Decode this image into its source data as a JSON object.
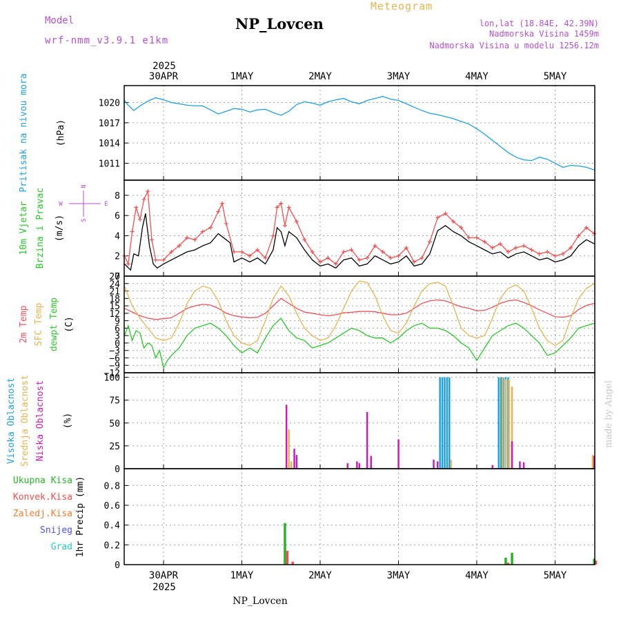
{
  "header": {
    "model_label": "Model",
    "model_name": "wrf-nmm_v3.9.1 e1km",
    "station": "NP_Lovcen",
    "meteogram": "Meteogram",
    "lonlat": "lon,lat (18.84E, 42.39N)",
    "altitude": "Nadmorska Visina 1459m",
    "model_altitude": "Nadmorska Visina u modelu 1256.12m",
    "year_top": "2025",
    "year_bottom": "2025",
    "footer_station": "NP_Lovcen",
    "watermark": "made by Angel"
  },
  "colors": {
    "pressure": "#1e9fe6",
    "temp2m": "#f0505a",
    "sfc": "#e6b450",
    "dewpt": "#28c828",
    "wind_label": "#28c828",
    "wind_speed": "#000000",
    "gust": "#f05050",
    "high_cloud": "#1e9fe6",
    "mid_cloud": "#e6b450",
    "low_cloud": "#c81eb4",
    "total_precip": "#28b428",
    "conv_precip": "#f05050",
    "frozen": "#f08030",
    "snow": "#5050f0",
    "hail": "#28c8c8",
    "purple_text": "#b450d2",
    "orange_text": "#e6b450"
  },
  "chart_data": [
    {
      "type": "line",
      "x_categories": [
        "30APR",
        "1MAY",
        "2MAY",
        "3MAY",
        "4MAY",
        "5MAY"
      ],
      "ylabel_lines": [
        "Pritisak na nivou mora",
        "(hPa)"
      ],
      "ylim": [
        1008.5,
        1022.5
      ],
      "yticks": [
        1011,
        1014,
        1017,
        1020
      ],
      "series": [
        {
          "x": [
            -0.5,
            -0.45,
            -0.38,
            -0.3,
            -0.2,
            -0.1,
            0,
            0.1,
            0.2,
            0.3,
            0.4,
            0.5,
            0.6,
            0.7,
            0.8,
            0.9,
            1,
            1.1,
            1.2,
            1.3,
            1.4,
            1.5,
            1.6,
            1.7,
            1.8,
            1.9,
            2,
            2.1,
            2.2,
            2.3,
            2.4,
            2.5,
            2.6,
            2.7,
            2.8,
            2.9,
            3,
            3.1,
            3.2,
            3.3,
            3.4,
            3.5,
            3.6,
            3.7,
            3.8,
            3.9,
            4,
            4.1,
            4.2,
            4.3,
            4.4,
            4.5,
            4.6,
            4.7,
            4.8,
            4.9,
            5,
            5.1,
            5.2,
            5.3,
            5.4,
            5.5
          ],
          "values": [
            1020.3,
            1019.6,
            1018.8,
            1019.5,
            1020.2,
            1020.7,
            1020.4,
            1020.0,
            1019.8,
            1019.6,
            1019.5,
            1019.5,
            1018.9,
            1018.3,
            1018.7,
            1019.1,
            1019.0,
            1018.6,
            1018.9,
            1019.0,
            1018.5,
            1018.1,
            1018.7,
            1019.7,
            1020.1,
            1019.9,
            1019.6,
            1020.1,
            1020.4,
            1020.6,
            1020.1,
            1019.8,
            1020.3,
            1020.6,
            1020.9,
            1020.5,
            1020.3,
            1019.8,
            1019.3,
            1018.8,
            1018.4,
            1018.2,
            1017.9,
            1017.6,
            1017.2,
            1016.8,
            1016.1,
            1015.3,
            1014.4,
            1013.5,
            1012.6,
            1011.9,
            1011.5,
            1011.4,
            1011.9,
            1011.6,
            1011.0,
            1010.4,
            1010.7,
            1010.6,
            1010.4,
            1010.0
          ]
        }
      ]
    },
    {
      "type": "line",
      "x_categories": [
        "30APR",
        "1MAY",
        "2MAY",
        "3MAY",
        "4MAY",
        "5MAY"
      ],
      "ylabel_lines": [
        "10m Vjetar",
        "Brzina i Pravac",
        "(m/s)"
      ],
      "compass": {
        "n": "N",
        "s": "S",
        "e": "E",
        "w": "W"
      },
      "ylim": [
        0,
        9.5
      ],
      "yticks": [
        0,
        2,
        4,
        6,
        8
      ],
      "series": [
        {
          "name": "speed",
          "x": [
            -0.5,
            -0.42,
            -0.38,
            -0.32,
            -0.27,
            -0.23,
            -0.18,
            -0.13,
            -0.08,
            0,
            0.1,
            0.2,
            0.3,
            0.4,
            0.5,
            0.6,
            0.7,
            0.8,
            0.85,
            0.9,
            1,
            1.1,
            1.2,
            1.3,
            1.4,
            1.45,
            1.5,
            1.55,
            1.6,
            1.7,
            1.8,
            1.9,
            2,
            2.1,
            2.2,
            2.3,
            2.4,
            2.5,
            2.6,
            2.7,
            2.8,
            2.9,
            3,
            3.1,
            3.2,
            3.3,
            3.4,
            3.5,
            3.6,
            3.7,
            3.8,
            3.9,
            4,
            4.1,
            4.2,
            4.3,
            4.4,
            4.5,
            4.6,
            4.7,
            4.8,
            4.9,
            5,
            5.1,
            5.2,
            5.3,
            5.4,
            5.5
          ],
          "values": [
            1.2,
            0.6,
            2.2,
            2.0,
            4.8,
            6.2,
            3.0,
            1.2,
            0.8,
            1.2,
            1.6,
            2.0,
            2.4,
            2.6,
            3.0,
            3.3,
            4.2,
            3.6,
            3.3,
            1.4,
            1.8,
            1.4,
            1.8,
            1.2,
            2.6,
            4.8,
            4.4,
            3.0,
            4.4,
            3.8,
            2.6,
            1.6,
            1.0,
            1.2,
            0.8,
            1.6,
            1.8,
            1.0,
            1.2,
            2.0,
            1.6,
            1.2,
            1.4,
            2.0,
            1.0,
            1.2,
            2.2,
            4.5,
            5.0,
            4.4,
            4.0,
            3.4,
            3.0,
            2.6,
            2.2,
            2.4,
            1.8,
            2.2,
            2.4,
            2.0,
            1.6,
            1.8,
            1.4,
            1.6,
            2.0,
            3.0,
            3.6,
            3.2
          ]
        },
        {
          "name": "gust",
          "x": [
            -0.5,
            -0.45,
            -0.4,
            -0.35,
            -0.3,
            -0.25,
            -0.2,
            -0.15,
            -0.1,
            0,
            0.1,
            0.2,
            0.3,
            0.4,
            0.5,
            0.6,
            0.7,
            0.75,
            0.8,
            0.9,
            1,
            1.1,
            1.2,
            1.3,
            1.4,
            1.45,
            1.5,
            1.55,
            1.6,
            1.7,
            1.8,
            1.9,
            2,
            2.1,
            2.2,
            2.3,
            2.4,
            2.5,
            2.6,
            2.7,
            2.8,
            2.9,
            3,
            3.1,
            3.2,
            3.3,
            3.4,
            3.5,
            3.6,
            3.7,
            3.8,
            3.9,
            4,
            4.1,
            4.2,
            4.3,
            4.4,
            4.5,
            4.6,
            4.7,
            4.8,
            4.9,
            5,
            5.1,
            5.2,
            5.3,
            5.4,
            5.5
          ],
          "values": [
            2.0,
            1.2,
            4.4,
            6.8,
            5.6,
            7.6,
            8.4,
            3.6,
            1.6,
            1.6,
            2.4,
            3.0,
            3.8,
            3.6,
            4.4,
            4.8,
            6.4,
            7.2,
            5.2,
            2.4,
            2.4,
            2.0,
            2.6,
            1.8,
            4.0,
            6.8,
            7.2,
            5.0,
            6.8,
            5.4,
            3.6,
            2.4,
            1.4,
            1.8,
            1.2,
            2.4,
            2.6,
            1.6,
            1.8,
            3.0,
            2.4,
            1.8,
            2.0,
            2.8,
            1.4,
            1.8,
            3.4,
            5.8,
            6.2,
            5.4,
            4.8,
            3.8,
            3.8,
            3.4,
            2.8,
            3.2,
            2.4,
            2.8,
            3.0,
            2.6,
            2.2,
            2.4,
            2.0,
            2.2,
            2.8,
            4.0,
            4.8,
            4.2
          ]
        }
      ]
    },
    {
      "type": "line",
      "x_categories": [
        "30APR",
        "1MAY",
        "2MAY",
        "3MAY",
        "4MAY",
        "5MAY"
      ],
      "ylabel_lines": [
        "2m Temp",
        "SFC Temp",
        "dewpt Temp",
        "(C)"
      ],
      "ylim": [
        -12,
        27
      ],
      "yticks": [
        -12,
        -9,
        -6,
        -3,
        0,
        3,
        6,
        9,
        12,
        15,
        18,
        21,
        24,
        27
      ],
      "series": [
        {
          "name": "2m Temp",
          "x": [
            -0.5,
            -0.4,
            -0.3,
            -0.2,
            -0.1,
            0,
            0.1,
            0.2,
            0.3,
            0.4,
            0.5,
            0.6,
            0.7,
            0.8,
            0.9,
            1,
            1.1,
            1.2,
            1.3,
            1.4,
            1.5,
            1.6,
            1.7,
            1.8,
            1.9,
            2,
            2.1,
            2.2,
            2.3,
            2.4,
            2.5,
            2.6,
            2.7,
            2.8,
            2.9,
            3,
            3.1,
            3.2,
            3.3,
            3.4,
            3.5,
            3.6,
            3.7,
            3.8,
            3.9,
            4,
            4.1,
            4.2,
            4.3,
            4.4,
            4.5,
            4.6,
            4.7,
            4.8,
            4.9,
            5,
            5.1,
            5.2,
            5.3,
            5.4,
            5.5
          ],
          "values": [
            14,
            12.5,
            11,
            10,
            9.5,
            9.8,
            10.2,
            12,
            14,
            15,
            15.6,
            15.3,
            14,
            12,
            11,
            10.5,
            10.2,
            10.4,
            12,
            15,
            18,
            16,
            14,
            12.5,
            12,
            11.4,
            11,
            11.4,
            12.2,
            12.4,
            12.7,
            12.8,
            12.6,
            12,
            11.4,
            11.4,
            12,
            14,
            16,
            17,
            17.4,
            17,
            15.8,
            14.6,
            14,
            13,
            13.2,
            14.4,
            16,
            17,
            17.4,
            16.4,
            15,
            13.4,
            12,
            10.6,
            10.4,
            11,
            13.5,
            15.2,
            16
          ]
        },
        {
          "name": "SFC Temp",
          "x": [
            -0.5,
            -0.4,
            -0.3,
            -0.2,
            -0.1,
            0,
            0.1,
            0.2,
            0.3,
            0.4,
            0.5,
            0.6,
            0.7,
            0.8,
            0.9,
            1,
            1.1,
            1.2,
            1.3,
            1.4,
            1.5,
            1.6,
            1.7,
            1.8,
            1.9,
            2,
            2.1,
            2.2,
            2.3,
            2.4,
            2.5,
            2.6,
            2.7,
            2.8,
            2.9,
            3,
            3.1,
            3.2,
            3.3,
            3.4,
            3.5,
            3.6,
            3.7,
            3.8,
            3.9,
            4,
            4.1,
            4.2,
            4.3,
            4.4,
            4.5,
            4.6,
            4.7,
            4.8,
            4.9,
            5,
            5.1,
            5.2,
            5.3,
            5.4,
            5.5
          ],
          "values": [
            23,
            15,
            10,
            6,
            2,
            1,
            2,
            8,
            16,
            21,
            23,
            22,
            17,
            9,
            3,
            0,
            -1,
            1,
            9,
            18,
            23,
            19,
            12,
            6,
            3,
            1,
            2,
            7,
            14,
            21,
            25,
            24.5,
            19,
            11,
            5,
            4,
            8,
            15,
            21,
            24,
            24.5,
            23,
            15,
            6,
            3,
            2,
            3,
            10,
            18,
            22,
            23.5,
            21,
            14,
            6,
            1,
            -1,
            1,
            10,
            18,
            22,
            24
          ]
        },
        {
          "name": "dewpt Temp",
          "x": [
            -0.5,
            -0.45,
            -0.4,
            -0.35,
            -0.3,
            -0.25,
            -0.2,
            -0.15,
            -0.1,
            -0.05,
            0,
            0.05,
            0.1,
            0.2,
            0.3,
            0.4,
            0.5,
            0.6,
            0.7,
            0.8,
            0.9,
            1,
            1.1,
            1.2,
            1.3,
            1.4,
            1.5,
            1.6,
            1.7,
            1.8,
            1.9,
            2,
            2.1,
            2.2,
            2.3,
            2.4,
            2.5,
            2.6,
            2.7,
            2.8,
            2.9,
            3,
            3.1,
            3.2,
            3.3,
            3.4,
            3.5,
            3.6,
            3.7,
            3.8,
            3.9,
            4,
            4.1,
            4.2,
            4.3,
            4.4,
            4.5,
            4.6,
            4.7,
            4.8,
            4.9,
            5,
            5.1,
            5.2,
            5.3,
            5.4,
            5.5
          ],
          "values": [
            3,
            7,
            1,
            5,
            4,
            -2,
            0,
            -1,
            -6,
            -3,
            -10,
            -7,
            -5,
            -2,
            3,
            6,
            7,
            8,
            6,
            3,
            -1,
            -4,
            -2,
            -4,
            2,
            7,
            10,
            5,
            2,
            1,
            -2,
            -1,
            0,
            2,
            4,
            6,
            5,
            3,
            2,
            2,
            0,
            2,
            5,
            7,
            8,
            6,
            6,
            5,
            3,
            0,
            -2,
            -7,
            -2,
            3,
            5,
            7,
            8,
            6,
            3,
            0,
            -5,
            -4,
            -1,
            2,
            6,
            7,
            8
          ]
        }
      ]
    },
    {
      "type": "bar",
      "x_categories": [
        "30APR",
        "1MAY",
        "2MAY",
        "3MAY",
        "4MAY",
        "5MAY"
      ],
      "ylabel_lines": [
        "Visoka Oblacnost",
        "Srednja Oblacnost",
        "Niska Oblacnost",
        "(%)"
      ],
      "ylim": [
        0,
        105
      ],
      "yticks": [
        0,
        25,
        50,
        75,
        100
      ],
      "series": [
        {
          "name": "Visoka Oblacnost",
          "x": [
            3.53,
            3.56,
            3.59,
            3.62,
            3.65,
            4.28,
            4.31,
            4.34,
            4.37,
            4.4
          ],
          "values": [
            100,
            100,
            100,
            100,
            100,
            100,
            100,
            100,
            100,
            100
          ]
        },
        {
          "name": "Srednja Oblacnost",
          "x": [
            1.6,
            1.63,
            3.67,
            4.33,
            4.37,
            4.41,
            4.45,
            5.48
          ],
          "values": [
            43,
            8,
            10,
            100,
            98,
            98,
            90,
            15
          ]
        },
        {
          "name": "Niska Oblacnost",
          "x": [
            1.57,
            1.67,
            1.7,
            2.35,
            2.47,
            2.5,
            2.6,
            2.65,
            3.0,
            3.45,
            3.5,
            4.2,
            4.45,
            4.55,
            4.6,
            5.5
          ],
          "values": [
            70,
            22,
            15,
            6,
            8,
            6,
            62,
            14,
            32,
            10,
            8,
            4,
            30,
            8,
            7,
            14
          ]
        }
      ]
    },
    {
      "type": "bar",
      "x_categories": [
        "30APR",
        "1MAY",
        "2MAY",
        "3MAY",
        "4MAY",
        "5MAY"
      ],
      "legend": [
        "Ukupna Kisa",
        "Konvek.Kisa",
        "Zaledj.Kisa",
        "Snijeg",
        "Grad"
      ],
      "ylabel_lines": [
        "1hr Precip (mm)"
      ],
      "ylim": [
        0,
        0.97
      ],
      "yticks": [
        0,
        0.2,
        0.4,
        0.6,
        0.8
      ],
      "ytick_labels": [
        "0",
        "0.2",
        "0.4",
        "0.6",
        "0.8"
      ],
      "series": [
        {
          "name": "Ukupna Kisa",
          "x": [
            1.55,
            4.37,
            4.45,
            5.5
          ],
          "values": [
            0.42,
            0.07,
            0.12,
            0.06
          ]
        },
        {
          "name": "Konvek.Kisa",
          "x": [
            1.58,
            1.65,
            4.4,
            5.52
          ],
          "values": [
            0.14,
            0.03,
            0.02,
            0.04
          ]
        }
      ]
    }
  ]
}
